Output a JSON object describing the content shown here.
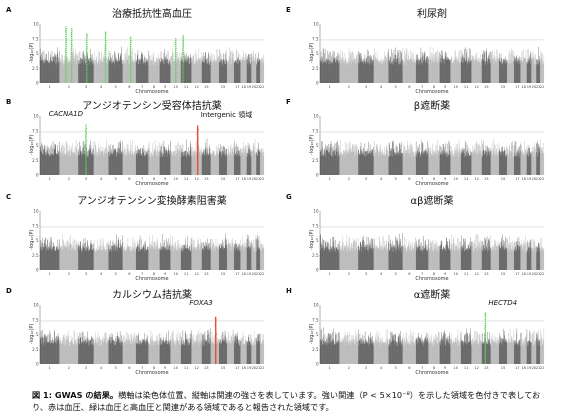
{
  "caption": {
    "bold": "図 1: GWAS の結果。",
    "text": "横軸は染色体位置、縦軸は関連の強さを表しています。強い関連（P < 5×10⁻⁸）を示した領域を色付きで表しており、赤は血圧、緑は血圧と高血圧と関連がある領域であると報告された領域です。"
  },
  "colors": {
    "dark": "#3a3a3a",
    "light": "#a8a8a8",
    "red": "#e8452a",
    "green": "#5fd35a",
    "threshold": "#cfcfcf"
  },
  "chart_data": [
    {
      "id": "A",
      "type": "scatter",
      "label": "A",
      "title": "治療抵抗性高血圧",
      "xlabel": "Chromosome",
      "ylabel": "-log₁₀(P)",
      "ylim": [
        0,
        10
      ],
      "yticks": [
        "0",
        "2.5",
        "5",
        "7.5",
        "10"
      ],
      "x_categories": [
        "1",
        "2",
        "3",
        "4",
        "5",
        "6",
        "7",
        "8",
        "9",
        "10",
        "11",
        "12",
        "13",
        "14",
        "15",
        "16",
        "17",
        "18",
        "19",
        "20",
        "21",
        "22"
      ],
      "peaks": [
        {
          "chrom": 2,
          "pos": 0.35,
          "y": 9.6,
          "color": "green"
        },
        {
          "chrom": 2,
          "pos": 0.65,
          "y": 9.3,
          "color": "green"
        },
        {
          "chrom": 3,
          "pos": 0.55,
          "y": 8.4,
          "color": "green"
        },
        {
          "chrom": 4,
          "pos": 0.8,
          "y": 8.8,
          "color": "green"
        },
        {
          "chrom": 6,
          "pos": 0.6,
          "y": 7.9,
          "color": "green"
        },
        {
          "chrom": 10,
          "pos": 0.5,
          "y": 7.6,
          "color": "green"
        },
        {
          "chrom": 11,
          "pos": 0.2,
          "y": 8.2,
          "color": "green"
        }
      ],
      "annotations": []
    },
    {
      "id": "E",
      "type": "scatter",
      "label": "E",
      "title": "利尿剤",
      "xlabel": "Chromosome",
      "ylabel": "-log₁₀(P)",
      "ylim": [
        0,
        10
      ],
      "yticks": [
        "0",
        "2.5",
        "5",
        "7.5",
        "10"
      ],
      "x_categories": [
        "1",
        "2",
        "3",
        "4",
        "5",
        "6",
        "7",
        "8",
        "9",
        "10",
        "11",
        "12",
        "13",
        "14",
        "15",
        "16",
        "17",
        "18",
        "19",
        "20",
        "21",
        "22"
      ],
      "peaks": [],
      "annotations": []
    },
    {
      "id": "B",
      "type": "scatter",
      "label": "B",
      "title": "アンジオテンシン受容体拮抗薬",
      "xlabel": "Chromosome",
      "ylabel": "-log₁₀(P)",
      "ylim": [
        0,
        10
      ],
      "yticks": [
        "0",
        "2.5",
        "5",
        "7.5",
        "10"
      ],
      "x_categories": [
        "1",
        "2",
        "3",
        "4",
        "5",
        "6",
        "7",
        "8",
        "9",
        "10",
        "11",
        "12",
        "13",
        "14",
        "15",
        "16",
        "17",
        "18",
        "19",
        "20",
        "21",
        "22"
      ],
      "peaks": [
        {
          "chrom": 3,
          "pos": 0.5,
          "y": 8.6,
          "color": "green"
        },
        {
          "chrom": 12,
          "pos": 0.6,
          "y": 8.4,
          "color": "red"
        }
      ],
      "annotations": [
        {
          "text": "CACNA1D",
          "italic": true,
          "chrom": 3,
          "pos": 0.5,
          "side": "left"
        },
        {
          "text": "Intergenic 領域",
          "italic": false,
          "chrom": 12,
          "pos": 0.6,
          "side": "right"
        }
      ]
    },
    {
      "id": "F",
      "type": "scatter",
      "label": "F",
      "title": "β遮断薬",
      "xlabel": "Chromosome",
      "ylabel": "-log₁₀(P)",
      "ylim": [
        0,
        10
      ],
      "yticks": [
        "0",
        "2.5",
        "5",
        "7.5",
        "10"
      ],
      "x_categories": [
        "1",
        "2",
        "3",
        "4",
        "5",
        "6",
        "7",
        "8",
        "9",
        "10",
        "11",
        "12",
        "13",
        "14",
        "15",
        "16",
        "17",
        "18",
        "19",
        "20",
        "21",
        "22"
      ],
      "peaks": [],
      "annotations": []
    },
    {
      "id": "C",
      "type": "scatter",
      "label": "C",
      "title": "アンジオテンシン変換酵素阻害薬",
      "xlabel": "Chromosome",
      "ylabel": "-log₁₀(P)",
      "ylim": [
        0,
        10
      ],
      "yticks": [
        "0",
        "2.5",
        "5",
        "7.5",
        "10"
      ],
      "x_categories": [
        "1",
        "2",
        "3",
        "4",
        "5",
        "6",
        "7",
        "8",
        "9",
        "10",
        "11",
        "12",
        "13",
        "14",
        "15",
        "16",
        "17",
        "18",
        "19",
        "20",
        "21",
        "22"
      ],
      "peaks": [],
      "annotations": []
    },
    {
      "id": "G",
      "type": "scatter",
      "label": "G",
      "title": "αβ遮断薬",
      "xlabel": "Chromosome",
      "ylabel": "-log₁₀(P)",
      "ylim": [
        0,
        10
      ],
      "yticks": [
        "0",
        "2.5",
        "5",
        "7.5",
        "10"
      ],
      "x_categories": [
        "1",
        "2",
        "3",
        "4",
        "5",
        "6",
        "7",
        "8",
        "9",
        "10",
        "11",
        "12",
        "13",
        "14",
        "15",
        "16",
        "17",
        "18",
        "19",
        "20",
        "21",
        "22"
      ],
      "peaks": [],
      "annotations": []
    },
    {
      "id": "D",
      "type": "scatter",
      "label": "D",
      "title": "カルシウム拮抗薬",
      "xlabel": "Chromosome",
      "ylabel": "-log₁₀(P)",
      "ylim": [
        0,
        10
      ],
      "yticks": [
        "0",
        "2.5",
        "5",
        "7.5",
        "10"
      ],
      "x_categories": [
        "1",
        "2",
        "3",
        "4",
        "5",
        "6",
        "7",
        "8",
        "9",
        "10",
        "11",
        "12",
        "13",
        "14",
        "15",
        "16",
        "17",
        "18",
        "19",
        "20",
        "21",
        "22"
      ],
      "peaks": [
        {
          "chrom": 14,
          "pos": 0.6,
          "y": 8.0,
          "color": "red"
        }
      ],
      "annotations": [
        {
          "text": "FOXA3",
          "italic": true,
          "chrom": 14,
          "pos": 0.6,
          "side": "left"
        }
      ]
    },
    {
      "id": "H",
      "type": "scatter",
      "label": "H",
      "title": "α遮断薬",
      "xlabel": "Chromosome",
      "ylabel": "-log₁₀(P)",
      "ylim": [
        0,
        10
      ],
      "yticks": [
        "0",
        "2.5",
        "5",
        "7.5",
        "10"
      ],
      "x_categories": [
        "1",
        "2",
        "3",
        "4",
        "5",
        "6",
        "7",
        "8",
        "9",
        "10",
        "11",
        "12",
        "13",
        "14",
        "15",
        "16",
        "17",
        "18",
        "19",
        "20",
        "21",
        "22"
      ],
      "peaks": [
        {
          "chrom": 13,
          "pos": 0.4,
          "y": 8.8,
          "color": "green"
        }
      ],
      "annotations": [
        {
          "text": "HECTD4",
          "italic": true,
          "chrom": 13,
          "pos": 0.4,
          "side": "right"
        }
      ]
    }
  ]
}
